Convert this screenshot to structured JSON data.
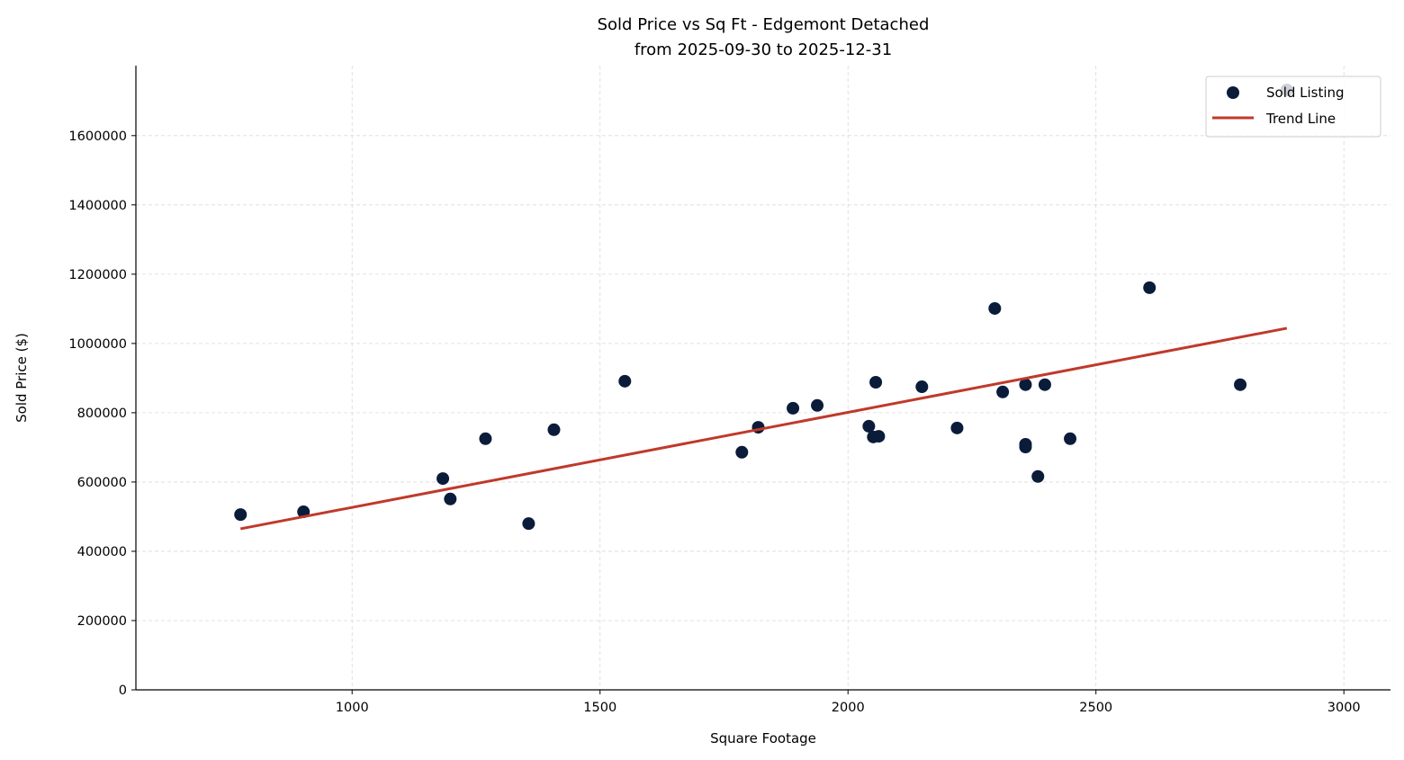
{
  "chart_data": {
    "type": "scatter",
    "title": "Sold Price vs Sq Ft - Edgemont Detached",
    "subtitle": "from 2025-09-30 to 2025-12-31",
    "xlabel": "Square Footage",
    "ylabel": "Sold Price ($)",
    "xlim": [
      564,
      3094
    ],
    "ylim": [
      0,
      1802000
    ],
    "xticks": [
      1000,
      1500,
      2000,
      2500,
      3000
    ],
    "yticks": [
      0,
      200000,
      400000,
      600000,
      800000,
      1000000,
      1200000,
      1400000,
      1600000
    ],
    "grid": true,
    "legend_position": "top-right",
    "colors": {
      "points": "#0a1c3a",
      "trend": "#c0392b"
    },
    "series": [
      {
        "name": "Sold Listing",
        "type": "scatter",
        "points": [
          [
            775,
            506000
          ],
          [
            902,
            514000
          ],
          [
            1183,
            610000
          ],
          [
            1198,
            551000
          ],
          [
            1269,
            725000
          ],
          [
            1356,
            480000
          ],
          [
            1407,
            751000
          ],
          [
            1550,
            891000
          ],
          [
            1786,
            686000
          ],
          [
            1819,
            758000
          ],
          [
            1889,
            813000
          ],
          [
            1938,
            821000
          ],
          [
            2042,
            761000
          ],
          [
            2051,
            730000
          ],
          [
            2056,
            888000
          ],
          [
            2062,
            732000
          ],
          [
            2149,
            875000
          ],
          [
            2220,
            756000
          ],
          [
            2296,
            1101000
          ],
          [
            2312,
            860000
          ],
          [
            2358,
            881000
          ],
          [
            2358,
            709000
          ],
          [
            2358,
            701000
          ],
          [
            2383,
            616000
          ],
          [
            2397,
            881000
          ],
          [
            2448,
            725000
          ],
          [
            2608,
            1161000
          ],
          [
            2791,
            881000
          ],
          [
            2885,
            1732000
          ]
        ]
      },
      {
        "name": "Trend Line",
        "type": "line",
        "points": [
          [
            775,
            465000
          ],
          [
            2885,
            1044000
          ]
        ]
      }
    ]
  }
}
